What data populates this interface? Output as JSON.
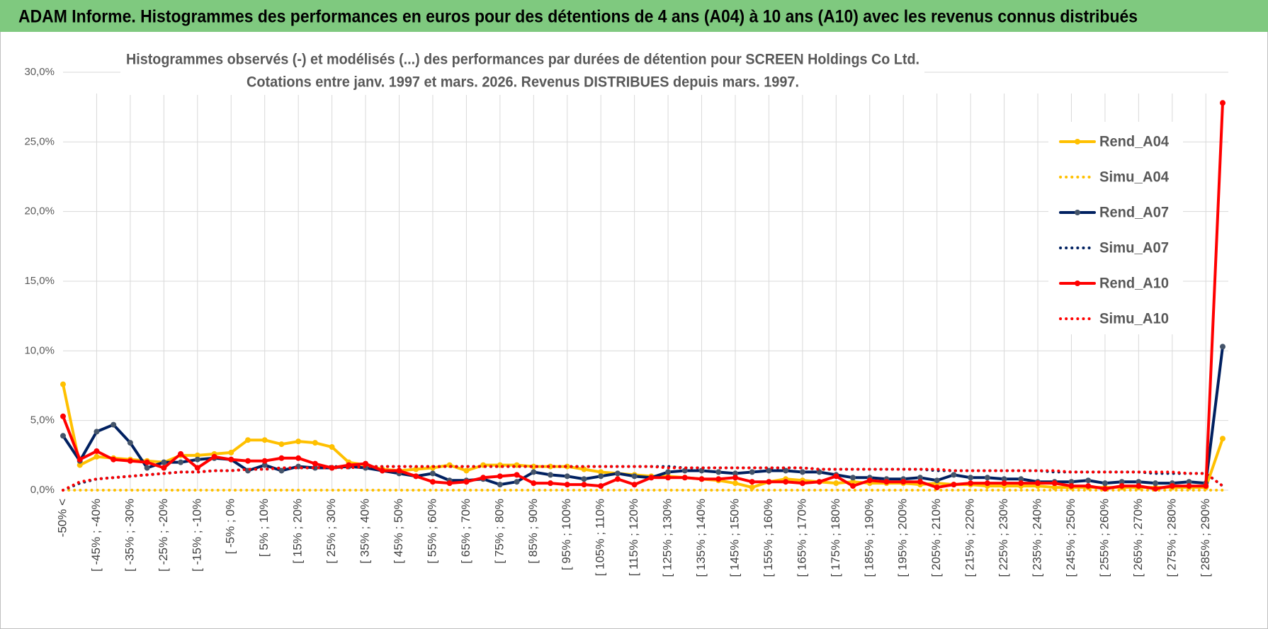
{
  "header": {
    "title": "ADAM Informe. Histogrammes des performances en euros pour des détentions de 4 ans (A04) à 10 ans (A10) avec les revenus connus distribués"
  },
  "chart_data": {
    "type": "line",
    "title": "Histogrammes observés (-) et modélisés (...) des performances par durées de détention pour SCREEN Holdings Co Ltd.",
    "subtitle": "Cotations entre janv. 1997 et mars. 2026.  Revenus DISTRIBUES depuis mars. 1997.",
    "categories": [
      "-50% <",
      null,
      "[ -45% ; -40%",
      null,
      "[ -35% ; -30%",
      null,
      "[ -25% ; -20%",
      null,
      "[ -15% ; -10%",
      null,
      "[ -5% ; 0%",
      null,
      "[ 5% ; 10%",
      null,
      "[ 15% ; 20%",
      null,
      "[ 25% ; 30%",
      null,
      "[ 35% ; 40%",
      null,
      "[ 45% ; 50%",
      null,
      "[ 55% ; 60%",
      null,
      "[ 65% ; 70%",
      null,
      "[ 75% ; 80%",
      null,
      "[ 85% ; 90%",
      null,
      "[ 95% ; 100%",
      null,
      "[ 105% ; 110%",
      null,
      "[ 115% ; 120%",
      null,
      "[ 125% ; 130%",
      null,
      "[ 135% ; 140%",
      null,
      "[ 145% ; 150%",
      null,
      "[ 155% ; 160%",
      null,
      "[ 165% ; 170%",
      null,
      "[ 175% ; 180%",
      null,
      "[ 185% ; 190%",
      null,
      "[ 195% ; 200%",
      null,
      "[ 205% ; 210%",
      null,
      "[ 215% ; 220%",
      null,
      "[ 225% ; 230%",
      null,
      "[ 235% ; 240%",
      null,
      "[ 245% ; 250%",
      null,
      "[ 255% ; 260%",
      null,
      "[ 265% ; 270%",
      null,
      "[ 275% ; 280%",
      null,
      "[ 285% ; 290%",
      null
    ],
    "series": [
      {
        "name": "Rend_A04",
        "color": "#FFC000",
        "line_style": "solid",
        "markers": true,
        "values": [
          7.6,
          1.8,
          2.4,
          2.3,
          2.2,
          2.1,
          2.0,
          2.5,
          2.5,
          2.6,
          2.7,
          3.6,
          3.6,
          3.3,
          3.5,
          3.4,
          3.1,
          2.0,
          1.8,
          1.5,
          1.4,
          1.5,
          1.6,
          1.8,
          1.4,
          1.8,
          1.8,
          1.8,
          1.7,
          1.7,
          1.7,
          1.5,
          1.3,
          1.2,
          1.1,
          1.0,
          1.0,
          0.9,
          0.8,
          0.7,
          0.5,
          0.2,
          0.6,
          0.8,
          0.7,
          0.6,
          0.5,
          0.6,
          0.5,
          0.5,
          0.5,
          0.4,
          0.5,
          0.4,
          0.4,
          0.3,
          0.3,
          0.3,
          0.3,
          0.2,
          0.2,
          0.2,
          0.2,
          0.2,
          0.2,
          0.2,
          0.2,
          0.2,
          0.2,
          3.7
        ]
      },
      {
        "name": "Simu_A04",
        "color": "#FFC000",
        "line_style": "dotted",
        "markers": false,
        "values": [
          0,
          0,
          0,
          0,
          0,
          0,
          0,
          0,
          0,
          0,
          0,
          0,
          0,
          0,
          0,
          0,
          0,
          0,
          0,
          0,
          0,
          0,
          0,
          0,
          0,
          0,
          0,
          0,
          0,
          0,
          0,
          0,
          0,
          0,
          0,
          0,
          0,
          0,
          0,
          0,
          0,
          0,
          0,
          0,
          0,
          0,
          0,
          0,
          0,
          0,
          0,
          0,
          0,
          0,
          0,
          0,
          0,
          0,
          0,
          0,
          0,
          0,
          0,
          0,
          0,
          0,
          0,
          0,
          0,
          0
        ]
      },
      {
        "name": "Rend_A07",
        "color": "#002060",
        "marker_color": "#44546A",
        "line_style": "solid",
        "markers": true,
        "values": [
          3.9,
          2.1,
          4.2,
          4.7,
          3.4,
          1.6,
          2.0,
          2.0,
          2.2,
          2.3,
          2.2,
          1.4,
          1.8,
          1.4,
          1.7,
          1.6,
          1.6,
          1.7,
          1.6,
          1.4,
          1.2,
          1.0,
          1.2,
          0.7,
          0.7,
          0.8,
          0.4,
          0.6,
          1.3,
          1.1,
          1.0,
          0.8,
          1.0,
          1.2,
          1.0,
          0.9,
          1.3,
          1.4,
          1.4,
          1.3,
          1.2,
          1.3,
          1.4,
          1.4,
          1.3,
          1.3,
          1.1,
          0.9,
          0.9,
          0.8,
          0.8,
          0.9,
          0.7,
          1.1,
          0.9,
          0.9,
          0.8,
          0.8,
          0.6,
          0.6,
          0.6,
          0.7,
          0.5,
          0.6,
          0.6,
          0.5,
          0.5,
          0.6,
          0.5,
          10.3
        ]
      },
      {
        "name": "Simu_A07",
        "color": "#002060",
        "line_style": "dotted",
        "markers": false,
        "values": [
          0,
          0.5,
          0.8,
          0.9,
          1.0,
          1.1,
          1.2,
          1.3,
          1.3,
          1.4,
          1.4,
          1.5,
          1.5,
          1.6,
          1.6,
          1.6,
          1.7,
          1.7,
          1.7,
          1.7,
          1.7,
          1.7,
          1.7,
          1.7,
          1.7,
          1.7,
          1.7,
          1.7,
          1.7,
          1.7,
          1.7,
          1.7,
          1.7,
          1.7,
          1.7,
          1.7,
          1.7,
          1.6,
          1.6,
          1.6,
          1.6,
          1.6,
          1.6,
          1.6,
          1.6,
          1.5,
          1.5,
          1.5,
          1.5,
          1.5,
          1.5,
          1.5,
          1.4,
          1.4,
          1.4,
          1.4,
          1.4,
          1.4,
          1.4,
          1.3,
          1.3,
          1.3,
          1.3,
          1.3,
          1.3,
          1.2,
          1.2,
          1.2,
          1.2,
          0.3
        ]
      },
      {
        "name": "Rend_A10",
        "color": "#FF0000",
        "line_style": "solid",
        "markers": true,
        "values": [
          5.3,
          2.2,
          2.8,
          2.2,
          2.1,
          2.0,
          1.6,
          2.6,
          1.6,
          2.4,
          2.2,
          2.1,
          2.1,
          2.3,
          2.3,
          1.9,
          1.6,
          1.8,
          1.9,
          1.4,
          1.4,
          1.0,
          0.6,
          0.5,
          0.6,
          0.9,
          1.0,
          1.1,
          0.5,
          0.5,
          0.4,
          0.4,
          0.3,
          0.8,
          0.4,
          0.9,
          0.9,
          0.9,
          0.8,
          0.8,
          0.9,
          0.6,
          0.6,
          0.6,
          0.5,
          0.6,
          1.0,
          0.3,
          0.7,
          0.6,
          0.6,
          0.6,
          0.2,
          0.4,
          0.5,
          0.5,
          0.5,
          0.5,
          0.5,
          0.5,
          0.3,
          0.3,
          0.1,
          0.3,
          0.3,
          0.1,
          0.3,
          0.3,
          0.3,
          27.8
        ]
      },
      {
        "name": "Simu_A10",
        "color": "#FF0000",
        "line_style": "dotted",
        "markers": false,
        "values": [
          0,
          0.6,
          0.8,
          0.9,
          1.0,
          1.1,
          1.2,
          1.3,
          1.3,
          1.4,
          1.4,
          1.5,
          1.5,
          1.6,
          1.6,
          1.6,
          1.6,
          1.6,
          1.7,
          1.7,
          1.7,
          1.7,
          1.7,
          1.7,
          1.7,
          1.7,
          1.7,
          1.7,
          1.7,
          1.7,
          1.7,
          1.7,
          1.7,
          1.7,
          1.7,
          1.7,
          1.6,
          1.6,
          1.6,
          1.6,
          1.6,
          1.6,
          1.6,
          1.6,
          1.6,
          1.5,
          1.5,
          1.5,
          1.5,
          1.5,
          1.5,
          1.5,
          1.5,
          1.4,
          1.4,
          1.4,
          1.4,
          1.4,
          1.4,
          1.4,
          1.3,
          1.3,
          1.3,
          1.3,
          1.3,
          1.3,
          1.3,
          1.2,
          1.2,
          0.3
        ]
      }
    ],
    "ylim": [
      0,
      30
    ],
    "yticks": [
      {
        "value": 0,
        "label": "0,0%"
      },
      {
        "value": 5,
        "label": "5,0%"
      },
      {
        "value": 10,
        "label": "10,0%"
      },
      {
        "value": 15,
        "label": "15,0%"
      },
      {
        "value": 20,
        "label": "20,0%"
      },
      {
        "value": 25,
        "label": "25,0%"
      },
      {
        "value": 30,
        "label": "30,0%"
      }
    ],
    "grid": true,
    "legend": "right"
  }
}
